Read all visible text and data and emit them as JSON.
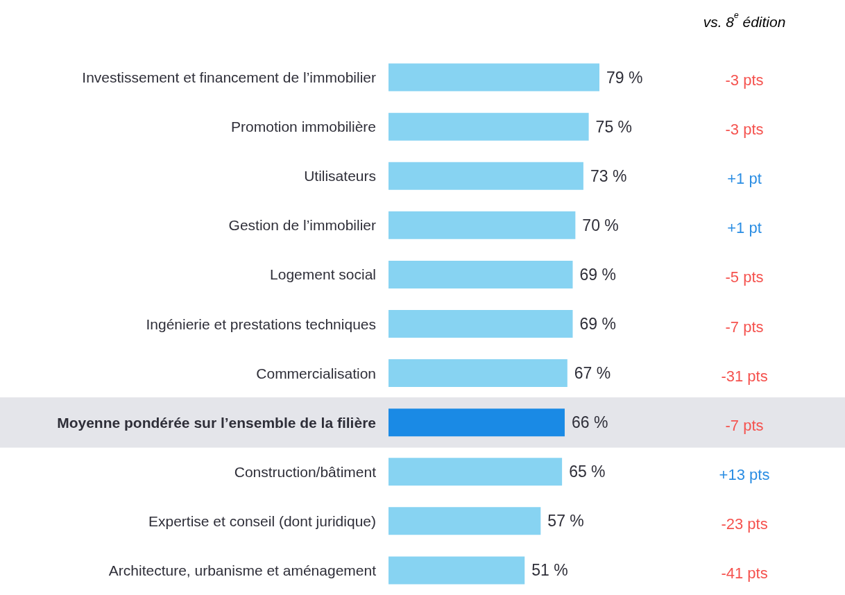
{
  "chart_data": {
    "type": "bar",
    "orientation": "horizontal",
    "categories": [
      "Investissement et financement de l’immobilier",
      "Promotion immobilière",
      "Utilisateurs",
      "Gestion de l’immobilier",
      "Logement social",
      "Ingénierie et prestations techniques",
      "Commercialisation",
      "Moyenne pondérée sur l’ensemble de la filière",
      "Construction/bâtiment",
      "Expertise et conseil (dont juridique)",
      "Architecture, urbanisme et aménagement"
    ],
    "values": [
      79,
      75,
      73,
      70,
      69,
      69,
      67,
      66,
      65,
      57,
      51
    ],
    "colors": [
      "#87d3f2",
      "#87d3f2",
      "#87d3f2",
      "#87d3f2",
      "#87d3f2",
      "#87d3f2",
      "#87d3f2",
      "#1a8ae5",
      "#87d3f2",
      "#87d3f2",
      "#87d3f2"
    ],
    "value_labels": [
      "79 %",
      "75 %",
      "73 %",
      "70 %",
      "69 %",
      "69 %",
      "67 %",
      "66 %",
      "65 %",
      "57 %",
      "51 %"
    ],
    "bands": [
      {
        "axis": "y",
        "from": "Moyenne pondérée sur l’ensemble de la filière",
        "to": "Moyenne pondérée sur l’ensemble de la filière",
        "color": "#e4e5ea"
      }
    ],
    "annotations": [
      "vs. 8$^{e}$ édition",
      "-3 pts",
      "-3 pts",
      "+1 pt",
      "+1 pt",
      "-5 pts",
      "-7 pts",
      "-31 pts",
      "-7 pts",
      "+13 pts",
      "-23 pts",
      "-41 pts"
    ]
  }
}
